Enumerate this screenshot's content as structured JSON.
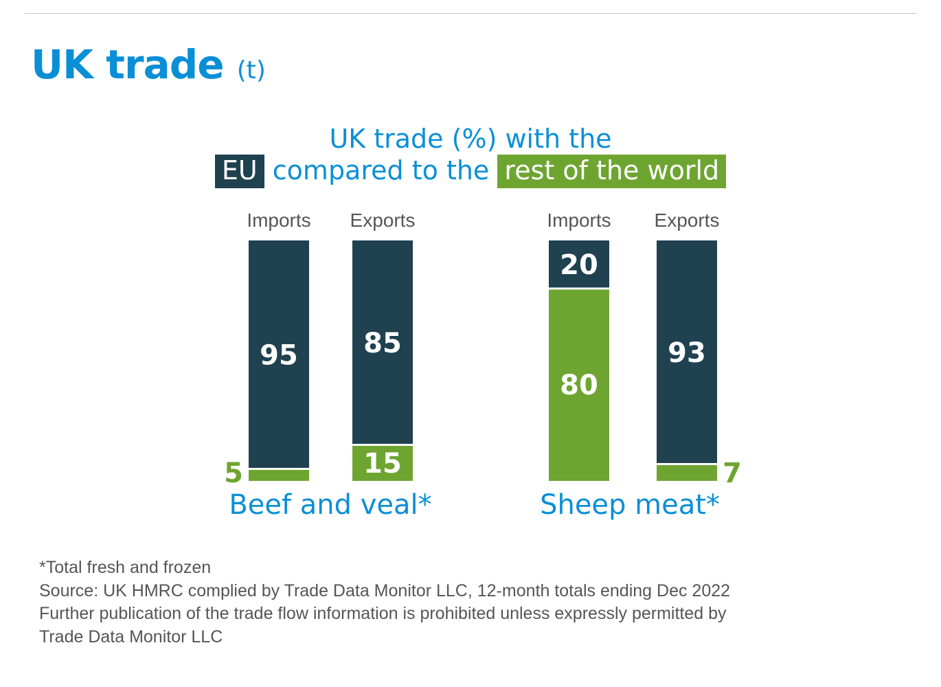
{
  "header": {
    "title": "UK trade",
    "unit": "(t)"
  },
  "subtitle": {
    "line1": "UK trade (%) with the",
    "eu_label": "EU",
    "middle": "compared to the",
    "row_label": "rest of the world"
  },
  "colors": {
    "eu": "#1f4150",
    "rest_of_world": "#6ea531",
    "title_blue": "#0a8fd6",
    "label_gray": "#555555"
  },
  "chart_data": [
    {
      "type": "bar",
      "stacked": true,
      "group_label": "Beef and veal*",
      "categories": [
        "Imports",
        "Exports"
      ],
      "series": [
        {
          "key": "eu",
          "values": [
            95,
            85
          ]
        },
        {
          "key": "rest_of_world",
          "values": [
            5,
            15
          ]
        }
      ],
      "ylim": [
        0,
        100
      ]
    },
    {
      "type": "bar",
      "stacked": true,
      "group_label": "Sheep meat*",
      "categories": [
        "Imports",
        "Exports"
      ],
      "series": [
        {
          "key": "eu",
          "values": [
            20,
            93
          ]
        },
        {
          "key": "rest_of_world",
          "values": [
            80,
            7
          ]
        }
      ],
      "ylim": [
        0,
        100
      ]
    }
  ],
  "footnotes": [
    "*Total fresh and frozen",
    "Source: UK HMRC complied by Trade Data Monitor LLC, 12-month totals ending Dec 2022",
    "Further publication of the trade flow information is prohibited unless expressly permitted by",
    "Trade Data Monitor LLC"
  ]
}
